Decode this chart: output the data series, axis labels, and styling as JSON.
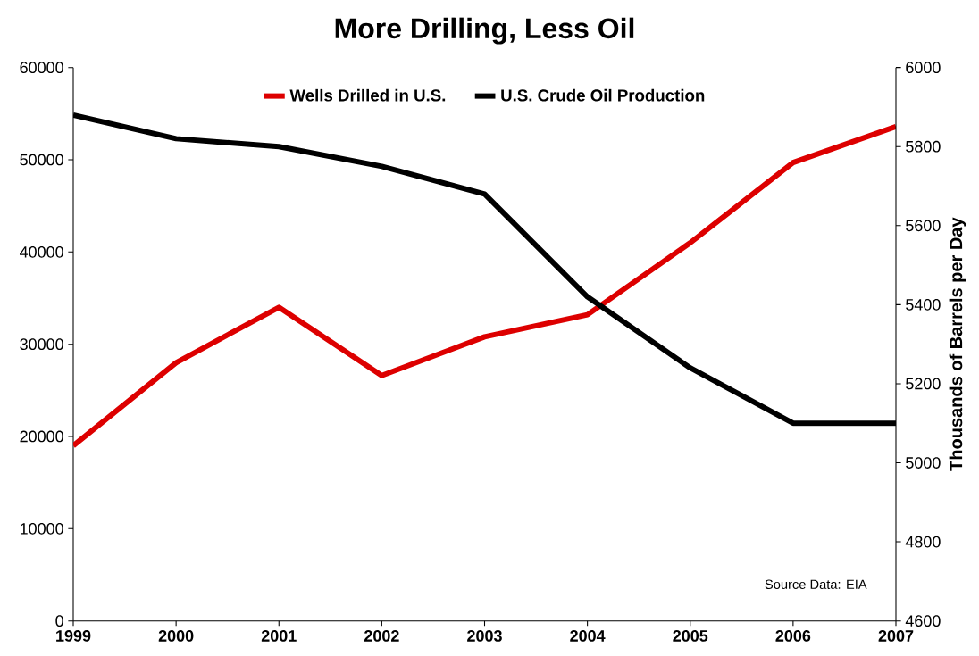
{
  "chart_data": {
    "type": "line",
    "title": "More Drilling, Less Oil",
    "y2label": "Thousands of Barrels per Day",
    "x": [
      1999,
      2000,
      2001,
      2002,
      2003,
      2004,
      2005,
      2006,
      2007
    ],
    "series": [
      {
        "name": "Wells Drilled in U.S.",
        "color": "#dd0000",
        "values": [
          19000,
          28000,
          34000,
          26600,
          30800,
          33200,
          41000,
          49700,
          53600
        ]
      },
      {
        "name": "U.S. Crude Oil Production",
        "color": "#000000",
        "axis": "y2",
        "values": [
          5880,
          5820,
          5800,
          5750,
          5680,
          5420,
          5240,
          5100,
          5100
        ]
      }
    ],
    "xlim": [
      1999,
      2007
    ],
    "xticks": [
      1999,
      2000,
      2001,
      2002,
      2003,
      2004,
      2005,
      2006,
      2007
    ],
    "ylim": [
      0,
      60000
    ],
    "yticks": [
      0,
      10000,
      20000,
      30000,
      40000,
      50000,
      60000
    ],
    "y2lim": [
      4600,
      6000
    ],
    "y2ticks": [
      4600,
      4800,
      5000,
      5200,
      5400,
      5600,
      5800,
      6000
    ],
    "annotations": [
      "Source Data: EIA"
    ],
    "legend": "top",
    "grid": false,
    "marker": "none",
    "line_style": "solid"
  }
}
